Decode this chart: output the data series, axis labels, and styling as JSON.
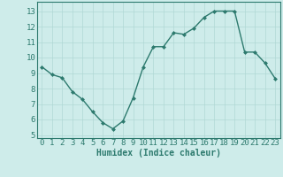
{
  "x": [
    0,
    1,
    2,
    3,
    4,
    5,
    6,
    7,
    8,
    9,
    10,
    11,
    12,
    13,
    14,
    15,
    16,
    17,
    18,
    19,
    20,
    21,
    22,
    23
  ],
  "y": [
    9.4,
    8.9,
    8.7,
    7.8,
    7.3,
    6.5,
    5.8,
    5.4,
    5.9,
    7.4,
    9.4,
    10.7,
    10.7,
    11.6,
    11.5,
    11.9,
    12.6,
    13.0,
    13.0,
    13.0,
    10.35,
    10.35,
    9.65,
    8.65
  ],
  "line_color": "#2d7a6e",
  "marker": "D",
  "marker_size": 2.0,
  "linewidth": 1.0,
  "bg_color": "#ceecea",
  "grid_color": "#b0d8d5",
  "xlabel": "Humidex (Indice chaleur)",
  "xlim": [
    -0.5,
    23.5
  ],
  "ylim": [
    4.8,
    13.6
  ],
  "yticks": [
    5,
    6,
    7,
    8,
    9,
    10,
    11,
    12,
    13
  ],
  "xticks": [
    0,
    1,
    2,
    3,
    4,
    5,
    6,
    7,
    8,
    9,
    10,
    11,
    12,
    13,
    14,
    15,
    16,
    17,
    18,
    19,
    20,
    21,
    22,
    23
  ],
  "xlabel_fontsize": 7,
  "tick_fontsize": 6.5
}
